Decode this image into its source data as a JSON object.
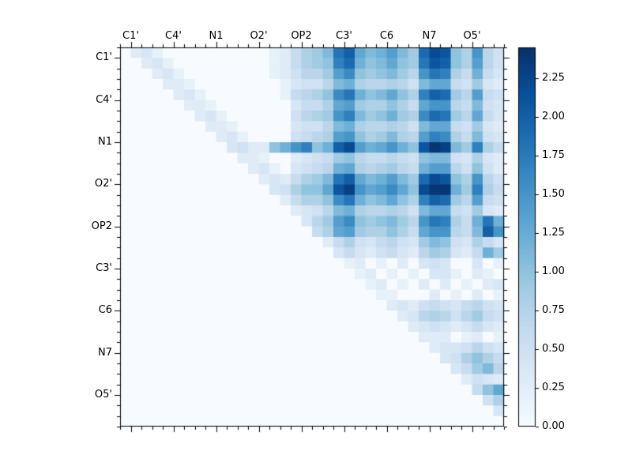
{
  "figure": {
    "background": "#ffffff",
    "frame_color": "#000000"
  },
  "chart_data": {
    "type": "heatmap",
    "title": "",
    "xlabel": "",
    "ylabel": "",
    "n": 36,
    "x_tick_labels": [
      "C1'",
      "C4'",
      "N1",
      "O2'",
      "OP2",
      "C3'",
      "C6",
      "N7",
      "O5'"
    ],
    "y_tick_labels": [
      "C1'",
      "C4'",
      "N1",
      "O2'",
      "OP2",
      "C3'",
      "C6",
      "N7",
      "O5'"
    ],
    "label_positions": [
      1,
      5,
      9,
      13,
      17,
      21,
      25,
      29,
      33
    ],
    "vmin": 0.0,
    "vmax": 2.45,
    "legend_position": "right-colorbar",
    "grid": false,
    "colorbar_tick_labels": [
      "0.00",
      "0.25",
      "0.50",
      "0.75",
      "1.00",
      "1.25",
      "1.50",
      "1.75",
      "2.00",
      "2.25"
    ],
    "colorbar_tick_values": [
      0.0,
      0.25,
      0.5,
      0.75,
      1.0,
      1.25,
      1.5,
      1.75,
      2.0,
      2.25
    ],
    "colormap": {
      "name": "Blues",
      "stops": [
        [
          0.0,
          "#f7fbff"
        ],
        [
          0.125,
          "#deebf7"
        ],
        [
          0.25,
          "#c6dbef"
        ],
        [
          0.375,
          "#9ecae1"
        ],
        [
          0.5,
          "#6baed6"
        ],
        [
          0.625,
          "#4292c6"
        ],
        [
          0.75,
          "#2171b5"
        ],
        [
          0.875,
          "#08519c"
        ],
        [
          1.0,
          "#08306b"
        ]
      ]
    },
    "values": [
      [
        0,
        0.3,
        0.4,
        0.2,
        0,
        0,
        0,
        0,
        0,
        0,
        0,
        0,
        0,
        0,
        0.2,
        0.3,
        0.6,
        0.8,
        0.9,
        1.1,
        1.8,
        2.0,
        1.3,
        1.1,
        1.2,
        1.4,
        1.1,
        0.9,
        1.9,
        2.2,
        2.1,
        1.0,
        0.8,
        1.5,
        0.7,
        0.5
      ],
      [
        0,
        0,
        0.3,
        0.4,
        0.2,
        0,
        0,
        0,
        0,
        0,
        0,
        0,
        0,
        0,
        0.2,
        0.3,
        0.6,
        0.8,
        0.9,
        1.0,
        1.7,
        1.9,
        1.2,
        1.0,
        1.1,
        1.3,
        1.0,
        0.9,
        1.8,
        2.1,
        2.0,
        1.0,
        0.8,
        1.4,
        0.7,
        0.5
      ],
      [
        0,
        0,
        0,
        0.3,
        0.4,
        0.2,
        0,
        0,
        0,
        0,
        0,
        0,
        0,
        0,
        0.2,
        0.3,
        0.5,
        0.7,
        0.7,
        0.9,
        1.4,
        1.6,
        1.0,
        0.9,
        1.0,
        1.1,
        0.9,
        0.7,
        1.5,
        1.8,
        1.7,
        0.8,
        0.6,
        1.2,
        0.6,
        0.4
      ],
      [
        0,
        0,
        0,
        0,
        0.3,
        0.3,
        0.2,
        0,
        0,
        0,
        0,
        0,
        0,
        0,
        0,
        0.2,
        0.4,
        0.5,
        0.5,
        0.7,
        1.1,
        1.2,
        0.8,
        0.7,
        0.7,
        0.8,
        0.7,
        0.5,
        1.1,
        1.3,
        1.3,
        0.6,
        0.5,
        0.9,
        0.4,
        0.3
      ],
      [
        0,
        0,
        0,
        0,
        0,
        0.3,
        0.4,
        0.2,
        0,
        0,
        0,
        0,
        0,
        0,
        0,
        0.2,
        0.6,
        0.7,
        0.8,
        1.0,
        1.6,
        1.8,
        1.2,
        1.0,
        1.1,
        1.3,
        1.0,
        0.8,
        1.7,
        2.0,
        1.9,
        0.9,
        0.7,
        1.4,
        0.6,
        0.5
      ],
      [
        0,
        0,
        0,
        0,
        0,
        0,
        0.3,
        0.3,
        0.2,
        0,
        0,
        0,
        0,
        0,
        0,
        0,
        0.4,
        0.6,
        0.6,
        0.8,
        1.3,
        1.4,
        0.9,
        0.8,
        0.8,
        1.0,
        0.8,
        0.6,
        1.3,
        1.5,
        1.5,
        0.7,
        0.6,
        1.1,
        0.5,
        0.4
      ],
      [
        0,
        0,
        0,
        0,
        0,
        0,
        0,
        0.3,
        0.4,
        0.2,
        0,
        0,
        0,
        0,
        0,
        0,
        0.5,
        0.7,
        0.8,
        0.9,
        1.5,
        1.7,
        1.1,
        0.9,
        1.0,
        1.2,
        0.9,
        0.8,
        1.6,
        1.9,
        1.8,
        0.9,
        0.7,
        1.3,
        0.6,
        0.4
      ],
      [
        0,
        0,
        0,
        0,
        0,
        0,
        0,
        0,
        0.3,
        0.3,
        0.2,
        0,
        0,
        0,
        0,
        0,
        0.4,
        0.5,
        0.5,
        0.7,
        1.1,
        1.2,
        0.8,
        0.7,
        0.7,
        0.8,
        0.7,
        0.5,
        1.1,
        1.3,
        1.3,
        0.6,
        0.5,
        0.9,
        0.4,
        0.3
      ],
      [
        0,
        0,
        0,
        0,
        0,
        0,
        0,
        0,
        0,
        0.3,
        0.4,
        0.2,
        0,
        0,
        0,
        0,
        0.5,
        0.6,
        0.7,
        0.8,
        1.4,
        1.5,
        1.0,
        0.8,
        0.9,
        1.1,
        0.8,
        0.7,
        1.4,
        1.7,
        1.6,
        0.8,
        0.6,
        1.1,
        0.5,
        0.4
      ],
      [
        0,
        0,
        0,
        0,
        0,
        0,
        0,
        0,
        0,
        0,
        0.4,
        0.5,
        0.3,
        0.3,
        1.0,
        1.2,
        1.5,
        1.7,
        1.0,
        1.2,
        2.0,
        2.2,
        1.4,
        1.2,
        1.3,
        1.5,
        1.2,
        1.0,
        2.1,
        2.4,
        2.3,
        1.1,
        0.9,
        1.7,
        0.8,
        0.6
      ],
      [
        0,
        0,
        0,
        0,
        0,
        0,
        0,
        0,
        0,
        0,
        0,
        0.3,
        0.3,
        0.2,
        0,
        0,
        0.3,
        0.4,
        0.5,
        0.6,
        0.9,
        1.0,
        0.7,
        0.6,
        0.6,
        0.7,
        0.6,
        0.5,
        1.0,
        1.1,
        1.1,
        0.5,
        0.4,
        0.8,
        0.4,
        0.3
      ],
      [
        0,
        0,
        0,
        0,
        0,
        0,
        0,
        0,
        0,
        0,
        0,
        0,
        0.3,
        0.4,
        0.2,
        0,
        0.4,
        0.5,
        0.6,
        0.7,
        1.2,
        1.3,
        0.8,
        0.7,
        0.8,
        0.9,
        0.7,
        0.6,
        1.2,
        1.4,
        1.4,
        0.7,
        0.5,
        1.0,
        0.5,
        0.3
      ],
      [
        0,
        0,
        0,
        0,
        0,
        0,
        0,
        0,
        0,
        0,
        0,
        0,
        0,
        0.3,
        0.4,
        0.3,
        0.6,
        0.8,
        0.9,
        1.1,
        1.8,
        2.0,
        1.3,
        1.1,
        1.2,
        1.4,
        1.1,
        0.9,
        1.9,
        2.2,
        2.1,
        1.0,
        0.8,
        1.5,
        0.7,
        0.5
      ],
      [
        0,
        0,
        0,
        0,
        0,
        0,
        0,
        0,
        0,
        0,
        0,
        0,
        0,
        0,
        0.4,
        0.5,
        0.8,
        1.0,
        1.0,
        1.3,
        2.1,
        2.3,
        1.5,
        1.3,
        1.4,
        1.6,
        1.3,
        1.0,
        2.2,
        2.4,
        2.4,
        1.2,
        0.9,
        1.7,
        0.8,
        0.6
      ],
      [
        0,
        0,
        0,
        0,
        0,
        0,
        0,
        0,
        0,
        0,
        0,
        0,
        0,
        0,
        0,
        0.3,
        0.6,
        0.8,
        0.8,
        1.0,
        1.6,
        1.8,
        1.2,
        1.0,
        1.1,
        1.3,
        1.0,
        0.8,
        1.7,
        2.0,
        1.9,
        0.9,
        0.7,
        1.4,
        0.6,
        0.5
      ],
      [
        0,
        0,
        0,
        0,
        0,
        0,
        0,
        0,
        0,
        0,
        0,
        0,
        0,
        0,
        0,
        0,
        0.3,
        0.4,
        0.5,
        0.7,
        1.1,
        1.2,
        0.8,
        0.7,
        0.7,
        0.8,
        0.7,
        0.5,
        1.1,
        1.3,
        1.3,
        0.6,
        0.5,
        0.9,
        0.4,
        0.3
      ],
      [
        0,
        0,
        0,
        0,
        0,
        0,
        0,
        0,
        0,
        0,
        0,
        0,
        0,
        0,
        0,
        0,
        0,
        0.4,
        0.7,
        0.9,
        1.4,
        1.6,
        1.0,
        0.9,
        1.0,
        1.1,
        0.9,
        0.7,
        1.5,
        1.8,
        1.7,
        0.8,
        0.6,
        1.2,
        1.8,
        1.2
      ],
      [
        0,
        0,
        0,
        0,
        0,
        0,
        0,
        0,
        0,
        0,
        0,
        0,
        0,
        0,
        0,
        0,
        0,
        0,
        0.6,
        0.8,
        1.3,
        1.4,
        0.9,
        0.8,
        0.8,
        1.0,
        0.8,
        0.6,
        1.3,
        1.5,
        1.5,
        0.7,
        0.6,
        1.1,
        2.0,
        1.5
      ],
      [
        0,
        0,
        0,
        0,
        0,
        0,
        0,
        0,
        0,
        0,
        0,
        0,
        0,
        0,
        0,
        0,
        0,
        0,
        0,
        0.3,
        0.6,
        0.8,
        0.5,
        0.4,
        0.6,
        0.7,
        0.5,
        0.4,
        0.9,
        1.1,
        1.0,
        0.5,
        0.4,
        0.8,
        0.6,
        0.4
      ],
      [
        0,
        0,
        0,
        0,
        0,
        0,
        0,
        0,
        0,
        0,
        0,
        0,
        0,
        0,
        0,
        0,
        0,
        0,
        0,
        0,
        0.4,
        0.6,
        0.4,
        0.3,
        0.5,
        0.6,
        0.4,
        0.3,
        0.7,
        0.9,
        0.8,
        0.4,
        0.3,
        0.6,
        1.2,
        0.9
      ],
      [
        0,
        0,
        0,
        0,
        0,
        0,
        0,
        0,
        0,
        0,
        0,
        0,
        0,
        0,
        0,
        0,
        0,
        0,
        0,
        0,
        0,
        0.2,
        0.3,
        0,
        0.2,
        0,
        0.3,
        0,
        0.4,
        0.5,
        0.4,
        0,
        0,
        0.4,
        0,
        0.2
      ],
      [
        0,
        0,
        0,
        0,
        0,
        0,
        0,
        0,
        0,
        0,
        0,
        0,
        0,
        0,
        0,
        0,
        0,
        0,
        0,
        0,
        0,
        0,
        0.2,
        0.3,
        0,
        0.2,
        0,
        0.2,
        0,
        0.4,
        0.4,
        0.2,
        0,
        0.3,
        0.2,
        0
      ],
      [
        0,
        0,
        0,
        0,
        0,
        0,
        0,
        0,
        0,
        0,
        0,
        0,
        0,
        0,
        0,
        0,
        0,
        0,
        0,
        0,
        0,
        0,
        0,
        0.2,
        0.3,
        0,
        0.2,
        0,
        0.3,
        0,
        0.3,
        0,
        0.2,
        0,
        0.3,
        0.4
      ],
      [
        0,
        0,
        0,
        0,
        0,
        0,
        0,
        0,
        0,
        0,
        0,
        0,
        0,
        0,
        0,
        0,
        0,
        0,
        0,
        0,
        0,
        0,
        0,
        0,
        0.2,
        0.2,
        0,
        0,
        0,
        0.3,
        0,
        0.2,
        0,
        0.3,
        0,
        0.2
      ],
      [
        0,
        0,
        0,
        0,
        0,
        0,
        0,
        0,
        0,
        0,
        0,
        0,
        0,
        0,
        0,
        0,
        0,
        0,
        0,
        0,
        0,
        0,
        0,
        0,
        0,
        0.3,
        0.4,
        0.3,
        0.5,
        0.6,
        0.5,
        0.4,
        0.6,
        0.7,
        0.5,
        0.4
      ],
      [
        0,
        0,
        0,
        0,
        0,
        0,
        0,
        0,
        0,
        0,
        0,
        0,
        0,
        0,
        0,
        0,
        0,
        0,
        0,
        0,
        0,
        0,
        0,
        0,
        0,
        0,
        0.3,
        0.4,
        0.7,
        0.8,
        0.7,
        0.5,
        0.7,
        0.9,
        0.6,
        0.5
      ],
      [
        0,
        0,
        0,
        0,
        0,
        0,
        0,
        0,
        0,
        0,
        0,
        0,
        0,
        0,
        0,
        0,
        0,
        0,
        0,
        0,
        0,
        0,
        0,
        0,
        0,
        0,
        0,
        0.3,
        0.4,
        0.5,
        0.4,
        0.3,
        0.4,
        0.6,
        0.4,
        0.3
      ],
      [
        0,
        0,
        0,
        0,
        0,
        0,
        0,
        0,
        0,
        0,
        0,
        0,
        0,
        0,
        0,
        0,
        0,
        0,
        0,
        0,
        0,
        0,
        0,
        0,
        0,
        0,
        0,
        0,
        0.3,
        0.3,
        0.3,
        0,
        0.2,
        0.3,
        0,
        0.2
      ],
      [
        0,
        0,
        0,
        0,
        0,
        0,
        0,
        0,
        0,
        0,
        0,
        0,
        0,
        0,
        0,
        0,
        0,
        0,
        0,
        0,
        0,
        0,
        0,
        0,
        0,
        0,
        0,
        0,
        0,
        0.3,
        0.4,
        0.4,
        0.5,
        0.7,
        0.5,
        0.4
      ],
      [
        0,
        0,
        0,
        0,
        0,
        0,
        0,
        0,
        0,
        0,
        0,
        0,
        0,
        0,
        0,
        0,
        0,
        0,
        0,
        0,
        0,
        0,
        0,
        0,
        0,
        0,
        0,
        0,
        0,
        0,
        0.4,
        0.5,
        0.8,
        1.0,
        0.8,
        0.6
      ],
      [
        0,
        0,
        0,
        0,
        0,
        0,
        0,
        0,
        0,
        0,
        0,
        0,
        0,
        0,
        0,
        0,
        0,
        0,
        0,
        0,
        0,
        0,
        0,
        0,
        0,
        0,
        0,
        0,
        0,
        0,
        0,
        0.4,
        0.6,
        0.9,
        1.1,
        0.7
      ],
      [
        0,
        0,
        0,
        0,
        0,
        0,
        0,
        0,
        0,
        0,
        0,
        0,
        0,
        0,
        0,
        0,
        0,
        0,
        0,
        0,
        0,
        0,
        0,
        0,
        0,
        0,
        0,
        0,
        0,
        0,
        0,
        0,
        0.3,
        0.5,
        0.4,
        0.3
      ],
      [
        0,
        0,
        0,
        0,
        0,
        0,
        0,
        0,
        0,
        0,
        0,
        0,
        0,
        0,
        0,
        0,
        0,
        0,
        0,
        0,
        0,
        0,
        0,
        0,
        0,
        0,
        0,
        0,
        0,
        0,
        0,
        0,
        0,
        0.6,
        1.0,
        1.3
      ],
      [
        0,
        0,
        0,
        0,
        0,
        0,
        0,
        0,
        0,
        0,
        0,
        0,
        0,
        0,
        0,
        0,
        0,
        0,
        0,
        0,
        0,
        0,
        0,
        0,
        0,
        0,
        0,
        0,
        0,
        0,
        0,
        0,
        0,
        0,
        0.5,
        0.8
      ],
      [
        0,
        0,
        0,
        0,
        0,
        0,
        0,
        0,
        0,
        0,
        0,
        0,
        0,
        0,
        0,
        0,
        0,
        0,
        0,
        0,
        0,
        0,
        0,
        0,
        0,
        0,
        0,
        0,
        0,
        0,
        0,
        0,
        0,
        0,
        0,
        0.4
      ],
      [
        0,
        0,
        0,
        0,
        0,
        0,
        0,
        0,
        0,
        0,
        0,
        0,
        0,
        0,
        0,
        0,
        0,
        0,
        0,
        0,
        0,
        0,
        0,
        0,
        0,
        0,
        0,
        0,
        0,
        0,
        0,
        0,
        0,
        0,
        0,
        0
      ]
    ]
  }
}
